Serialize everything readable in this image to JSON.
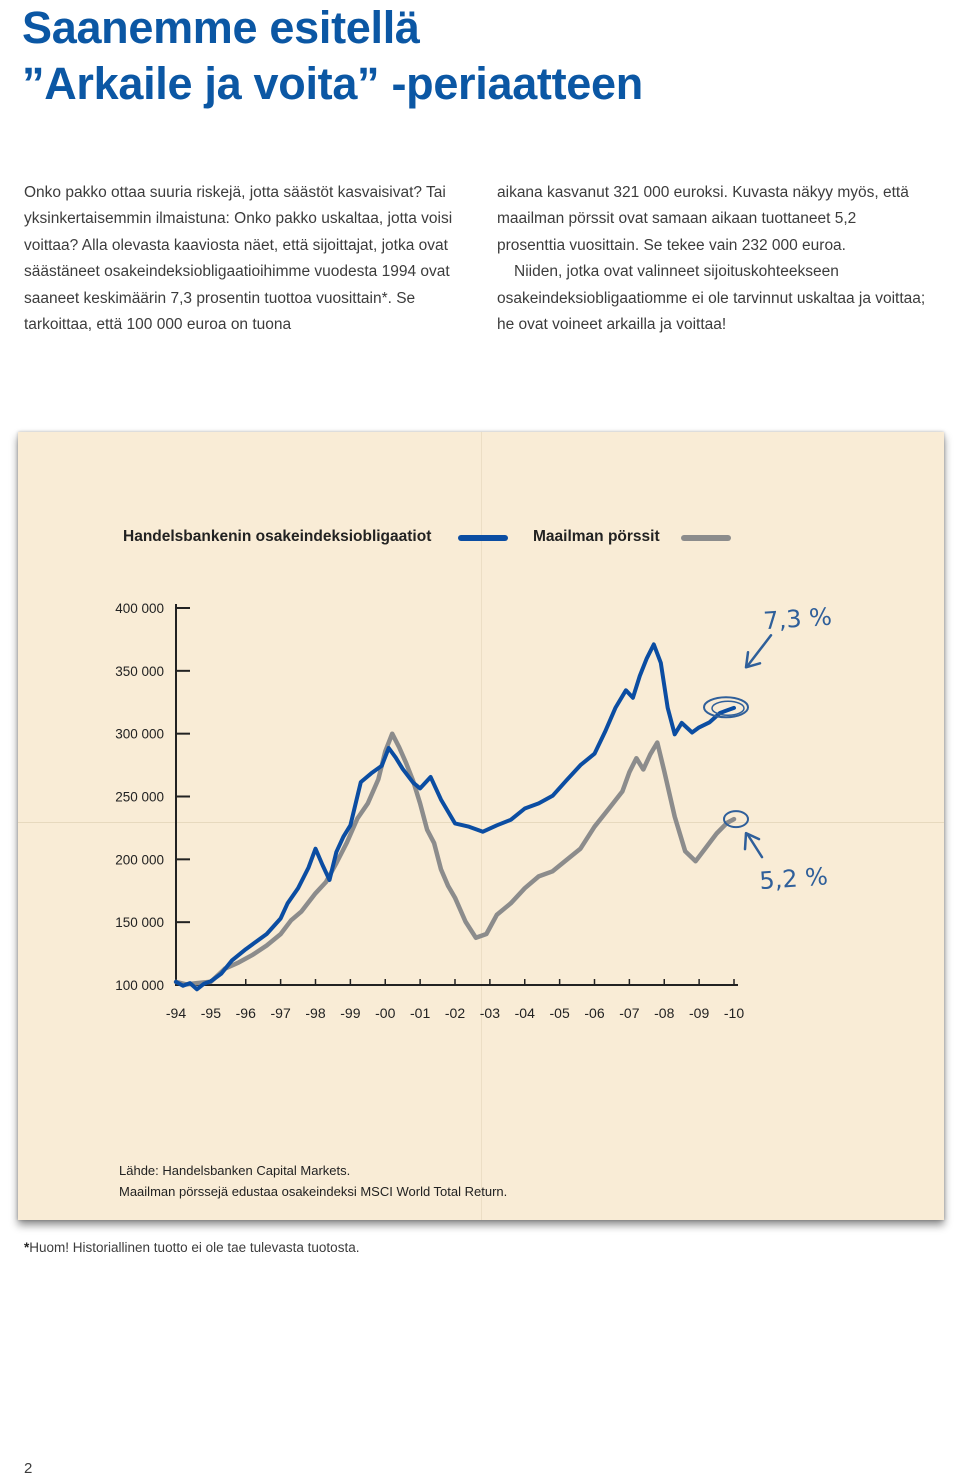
{
  "page": {
    "title_line1": "Saanemme esitellä",
    "title_line2": "”Arkaile ja voita” -periaatteen",
    "left_text": "Onko pakko ottaa suuria riskejä, jotta säästöt kasvaisivat? Tai yksinkertaisemmin ilmaistuna: Onko pakko uskaltaa, jotta voisi voittaa? Alla olevasta kaaviosta näet, että sijoittajat, jotka ovat säästäneet osakeindeksiobligaatioihimme vuodesta 1994 ovat saaneet keskimäärin 7,3 prosentin tuottoa vuosittain*. Se tarkoittaa, että 100 000 euroa on tuona",
    "right_text_1": "aikana kasvanut 321 000 euroksi. Kuvasta näkyy myös, että maailman pörssit ovat samaan aikaan tuottaneet 5,2 prosenttia vuosittain. Se tekee vain 232 000 euroa.",
    "right_text_2": "Niiden, jotka ovat valinneet sijoituskohteekseen osakeindeksiobligaatiomme ei ole tarvinnut uskaltaa ja voittaa; he ovat voineet arkailla ja voittaa!",
    "source_line1": "Lähde: Handelsbanken Capital Markets.",
    "source_line2": "Maailman pörssejä edustaa osakeindeksi  MSCI World Total Return.",
    "footnote_star": "*",
    "footnote_text": "Huom! Historiallinen tuotto ei ole tae tulevasta tuotosta.",
    "page_number": "2"
  },
  "colors": {
    "title": "#0b57a4",
    "series_blue": "#0b4da2",
    "series_gray": "#8c8c8c",
    "paper": "#f9ecd6",
    "annotation": "#2f5f9a"
  },
  "chart_data": {
    "type": "line",
    "title": "",
    "xlabel": "",
    "ylabel": "",
    "ylim": [
      100000,
      400000
    ],
    "xlim": [
      1994,
      2010
    ],
    "x_tick_labels": [
      "-94",
      "-95",
      "-96",
      "-97",
      "-98",
      "-99",
      "-00",
      "-01",
      "-02",
      "-03",
      "-04",
      "-05",
      "-06",
      "-07",
      "-08",
      "-09",
      "-10"
    ],
    "y_ticks": [
      100000,
      150000,
      200000,
      250000,
      300000,
      350000,
      400000
    ],
    "y_tick_labels": [
      "100 000",
      "150 000",
      "200 000",
      "250 000",
      "300 000",
      "350 000",
      "400 000"
    ],
    "series": [
      {
        "name": "Handelsbankenin osakeindeksiobligaatiot",
        "color": "#0b4da2",
        "x": [
          1994.0,
          1994.2,
          1994.4,
          1994.6,
          1994.8,
          1995.0,
          1995.3,
          1995.6,
          1996.0,
          1996.3,
          1996.6,
          1997.0,
          1997.2,
          1997.5,
          1997.8,
          1998.0,
          1998.2,
          1998.4,
          1998.6,
          1998.8,
          1999.0,
          1999.3,
          1999.6,
          1999.9,
          2000.1,
          2000.3,
          2000.5,
          2000.8,
          2001.0,
          2001.3,
          2001.6,
          2002.0,
          2002.4,
          2002.8,
          2003.2,
          2003.6,
          2004.0,
          2004.4,
          2004.8,
          2005.2,
          2005.6,
          2006.0,
          2006.3,
          2006.6,
          2006.9,
          2007.1,
          2007.3,
          2007.5,
          2007.7,
          2007.9,
          2008.1,
          2008.3,
          2008.5,
          2008.8,
          2009.0,
          2009.3,
          2009.6,
          2009.8,
          2010.0
        ],
        "values": [
          101000,
          99000,
          102000,
          98000,
          100000,
          103000,
          110000,
          118000,
          128000,
          135000,
          142000,
          152000,
          165000,
          178000,
          192000,
          208000,
          196000,
          185000,
          205000,
          218000,
          228000,
          260000,
          268000,
          275000,
          290000,
          280000,
          272000,
          262000,
          255000,
          265000,
          248000,
          230000,
          225000,
          222000,
          228000,
          230000,
          240000,
          245000,
          252000,
          262000,
          275000,
          285000,
          300000,
          320000,
          335000,
          330000,
          345000,
          360000,
          372000,
          355000,
          320000,
          300000,
          310000,
          300000,
          305000,
          310000,
          315000,
          318000,
          321000
        ]
      },
      {
        "name": "Maailman pörssit",
        "color": "#8c8c8c",
        "x": [
          1994.0,
          1994.3,
          1994.6,
          1995.0,
          1995.4,
          1995.8,
          1996.2,
          1996.6,
          1997.0,
          1997.3,
          1997.6,
          1998.0,
          1998.3,
          1998.6,
          1998.9,
          1999.2,
          1999.5,
          1999.8,
          2000.0,
          2000.2,
          2000.4,
          2000.6,
          2000.8,
          2001.0,
          2001.2,
          2001.4,
          2001.6,
          2001.8,
          2002.0,
          2002.3,
          2002.6,
          2002.9,
          2003.2,
          2003.6,
          2004.0,
          2004.4,
          2004.8,
          2005.2,
          2005.6,
          2006.0,
          2006.4,
          2006.8,
          2007.0,
          2007.2,
          2007.4,
          2007.6,
          2007.8,
          2008.0,
          2008.3,
          2008.6,
          2008.9,
          2009.2,
          2009.5,
          2009.8,
          2010.0
        ],
        "values": [
          101000,
          100000,
          102000,
          104000,
          112000,
          118000,
          125000,
          130000,
          140000,
          152000,
          160000,
          172000,
          182000,
          198000,
          212000,
          232000,
          245000,
          265000,
          285000,
          300000,
          290000,
          275000,
          262000,
          245000,
          225000,
          212000,
          192000,
          180000,
          168000,
          150000,
          138000,
          142000,
          155000,
          165000,
          178000,
          185000,
          190000,
          200000,
          210000,
          225000,
          240000,
          255000,
          268000,
          280000,
          272000,
          285000,
          292000,
          270000,
          235000,
          205000,
          198000,
          210000,
          222000,
          228000,
          232000
        ]
      }
    ],
    "legend": "top",
    "annotations": [
      "7,3 %",
      "5,2 %"
    ],
    "grid": false
  }
}
